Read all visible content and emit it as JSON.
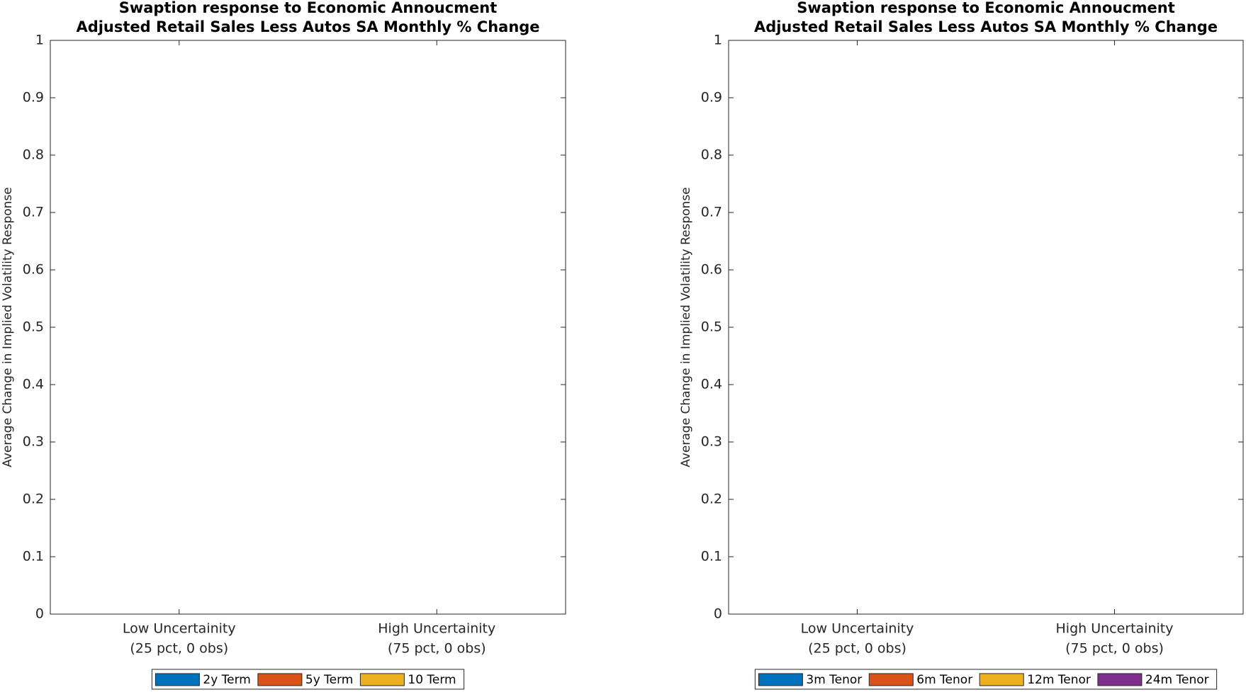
{
  "chart_data": [
    {
      "type": "bar",
      "title": [
        "Swaption response to Economic Annoucment",
        "Adjusted Retail Sales Less Autos SA Monthly % Change"
      ],
      "ylabel": "Average Change in Implied Volatility Response",
      "categories": [
        [
          "Low Uncertainity",
          "(25 pct, 0 obs)"
        ],
        [
          "High Uncertainity",
          "(75 pct, 0 obs)"
        ]
      ],
      "series": [
        {
          "name": "2y Term",
          "color": "#0072BD",
          "values": [
            null,
            null
          ]
        },
        {
          "name": "5y Term",
          "color": "#D95319",
          "values": [
            null,
            null
          ]
        },
        {
          "name": "10 Term",
          "color": "#EDB120",
          "values": [
            null,
            null
          ]
        }
      ],
      "ylim": [
        0,
        1
      ],
      "yticks": [
        0,
        0.1,
        0.2,
        0.3,
        0.4,
        0.5,
        0.6,
        0.7,
        0.8,
        0.9,
        1
      ],
      "grid": false,
      "legend": "bottom"
    },
    {
      "type": "bar",
      "title": [
        "Swaption response to Economic Annoucment",
        "Adjusted Retail Sales Less Autos SA Monthly % Change"
      ],
      "ylabel": "Average Change in Implied Volatility Response",
      "categories": [
        [
          "Low Uncertainity",
          "(25 pct, 0 obs)"
        ],
        [
          "High Uncertainity",
          "(75 pct, 0 obs)"
        ]
      ],
      "series": [
        {
          "name": "3m Tenor",
          "color": "#0072BD",
          "values": [
            null,
            null
          ]
        },
        {
          "name": "6m Tenor",
          "color": "#D95319",
          "values": [
            null,
            null
          ]
        },
        {
          "name": "12m Tenor",
          "color": "#EDB120",
          "values": [
            null,
            null
          ]
        },
        {
          "name": "24m Tenor",
          "color": "#7E2F8E",
          "values": [
            null,
            null
          ]
        }
      ],
      "ylim": [
        0,
        1
      ],
      "yticks": [
        0,
        0.1,
        0.2,
        0.3,
        0.4,
        0.5,
        0.6,
        0.7,
        0.8,
        0.9,
        1
      ],
      "grid": false,
      "legend": "bottom"
    }
  ]
}
